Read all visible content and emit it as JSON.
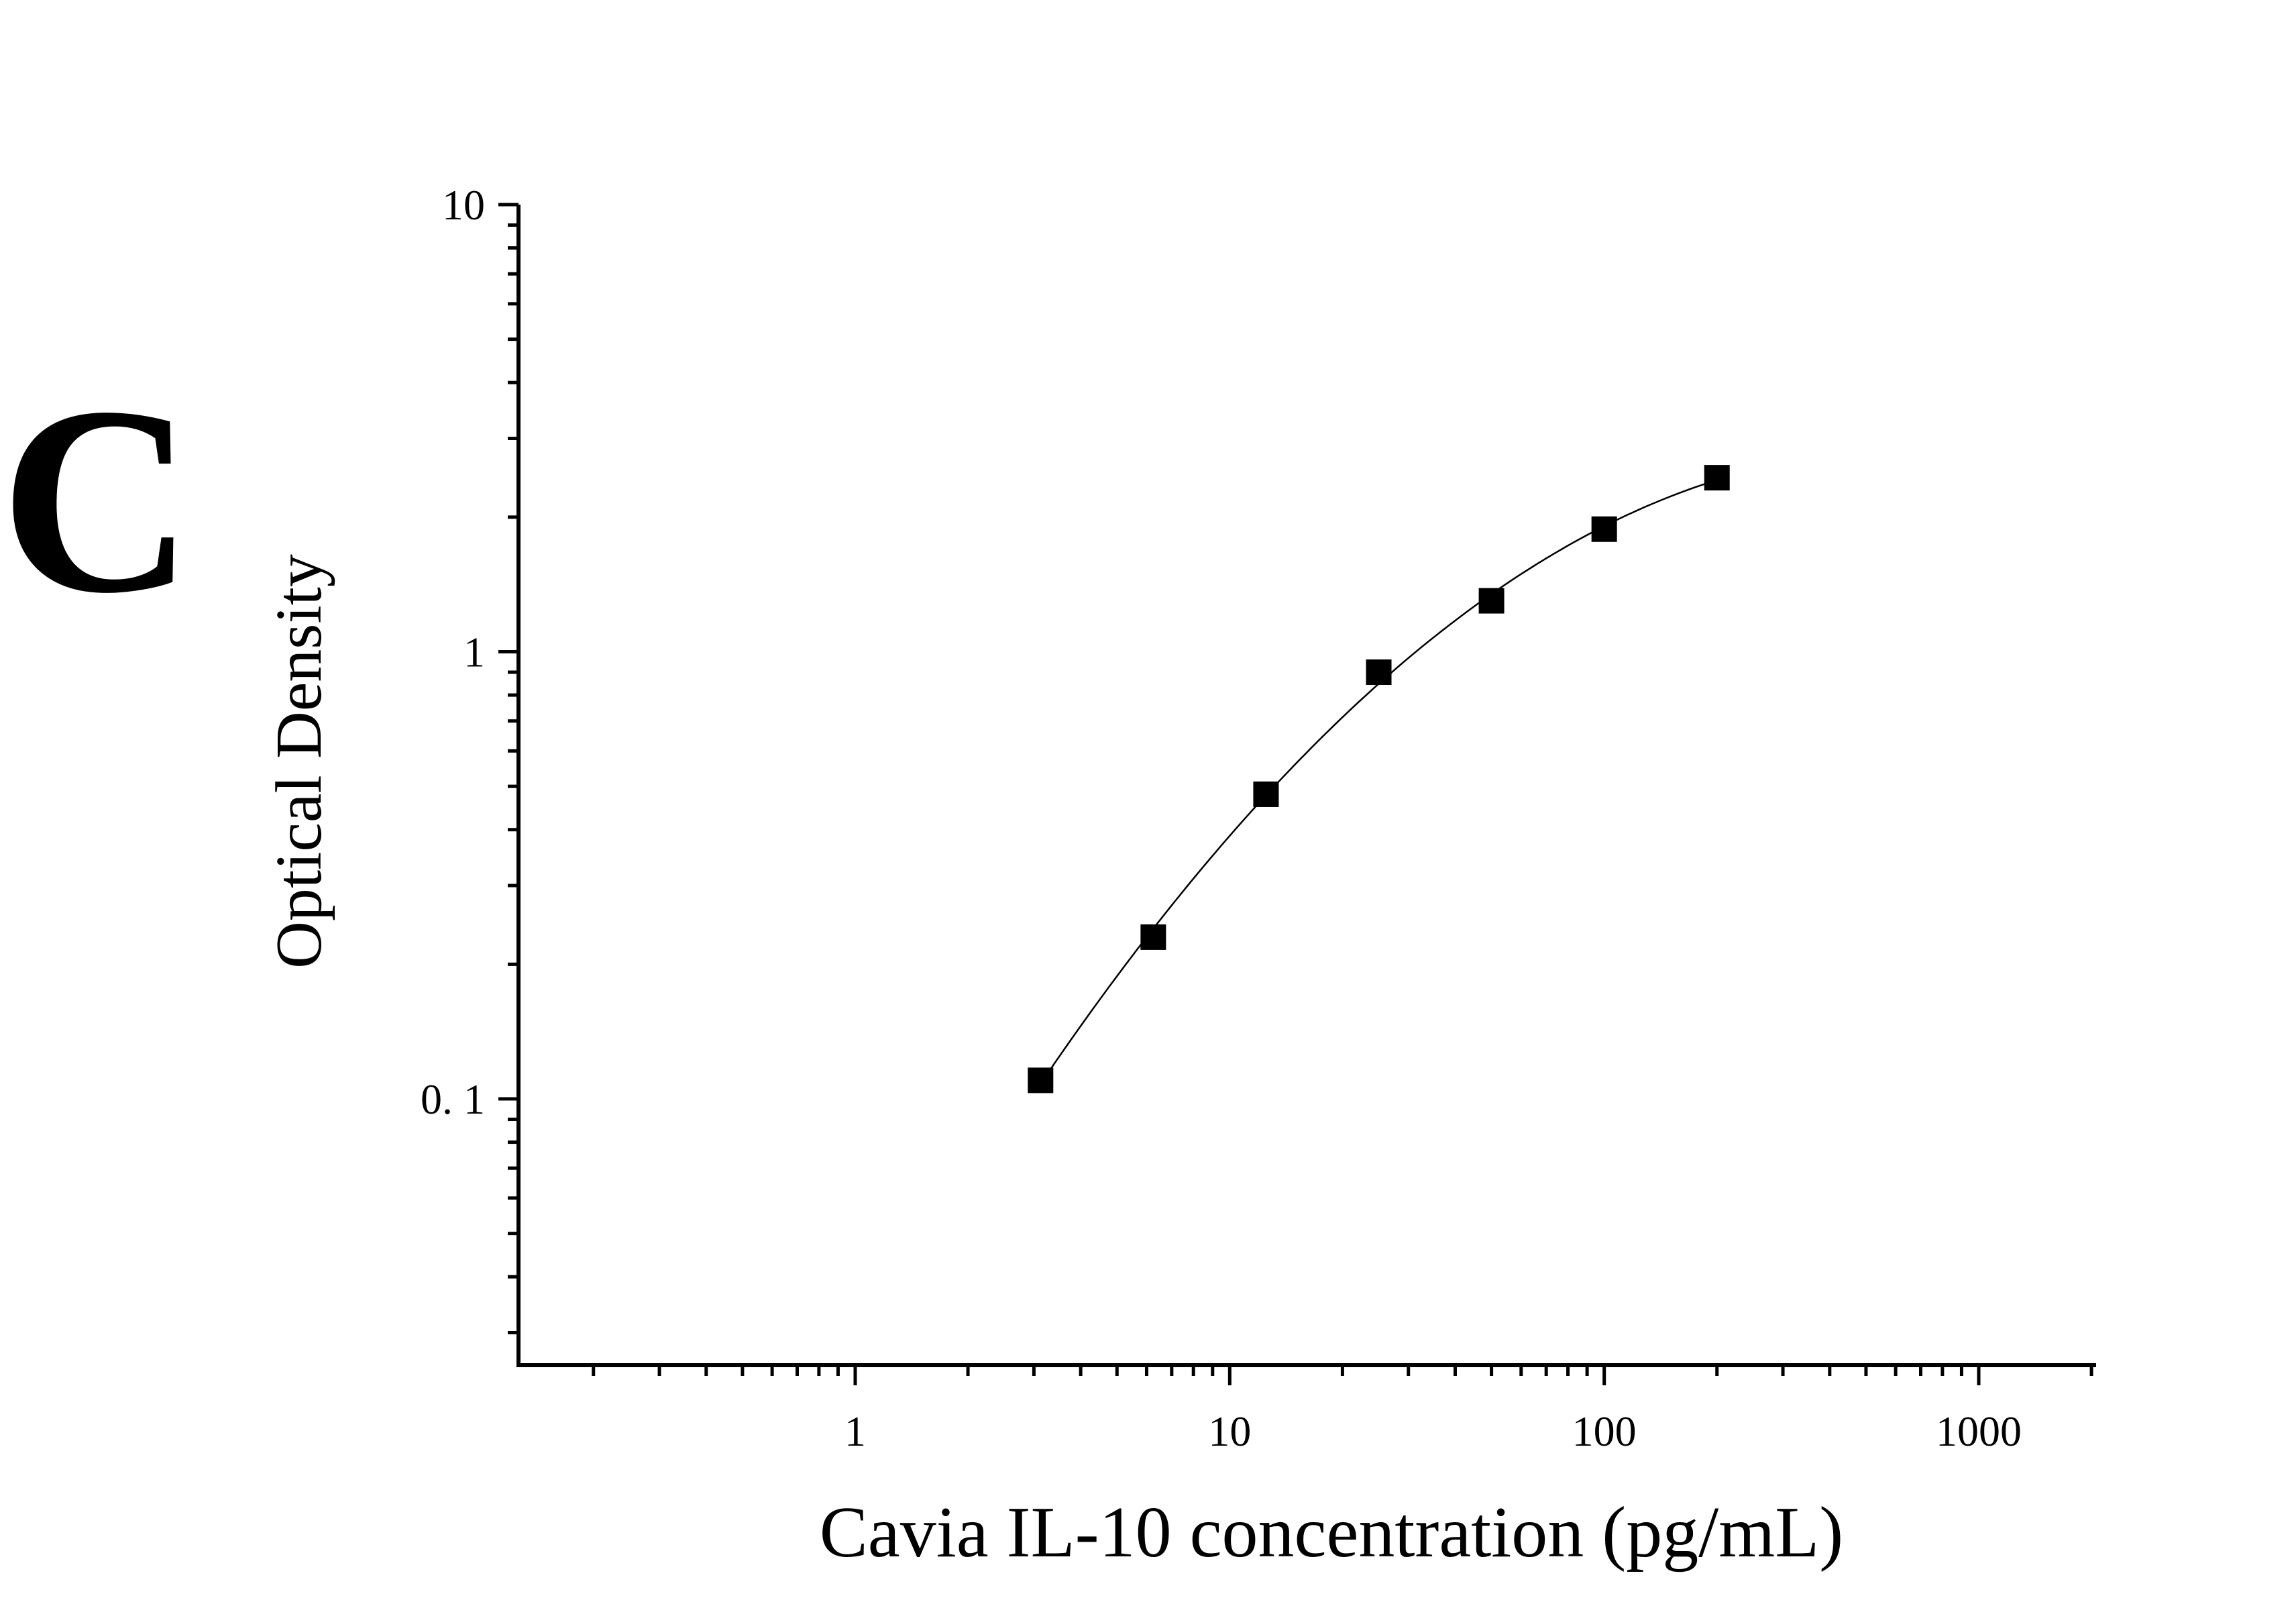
{
  "panel_label": "C",
  "chart_data": {
    "type": "scatter",
    "title": "",
    "xlabel": "Cavia IL-10 concentration (pg/mL)",
    "ylabel": "Optical Density",
    "x_scale": "log",
    "y_scale": "log",
    "xlim": [
      0.125,
      2000
    ],
    "ylim": [
      0.028,
      10
    ],
    "x_ticks": [
      1,
      10,
      100,
      1000
    ],
    "x_tick_labels": [
      "1",
      "10",
      "100",
      "1000"
    ],
    "y_ticks": [
      0.1,
      1,
      10
    ],
    "y_tick_labels": [
      "0. 1",
      "1",
      "10"
    ],
    "grid": false,
    "legend": "none",
    "marker": "square",
    "color": "#000000",
    "series": [
      {
        "x": [
          3.125,
          6.25,
          12.5,
          25,
          50,
          100,
          200
        ],
        "y": [
          0.11,
          0.23,
          0.48,
          0.9,
          1.3,
          1.88,
          2.45
        ]
      }
    ],
    "fit_curve": true
  }
}
